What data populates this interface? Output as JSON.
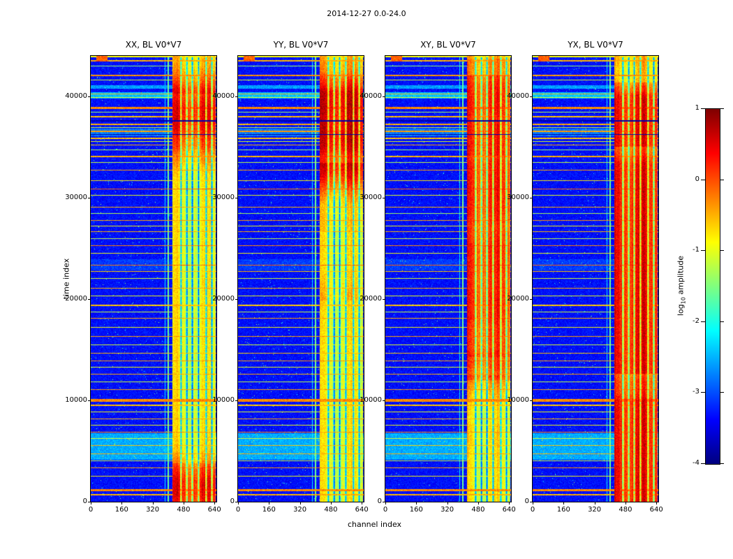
{
  "figure": {
    "title": "2014-12-27 0.0-24.0",
    "xlabel": "channel index",
    "ylabel": "time index"
  },
  "colorbar": {
    "label_prefix": "log",
    "label_sub": "10",
    "label_suffix": " amplitude",
    "ticks": [
      1,
      0,
      -1,
      -2,
      -3,
      -4
    ]
  },
  "chart_data": {
    "type": "heatmap",
    "title": "2014-12-27 0.0-24.0",
    "xlabel": "channel index",
    "ylabel": "time index",
    "colormap": "jet",
    "value_label": "log10 amplitude",
    "value_range": [
      -4,
      1
    ],
    "x_range": [
      0,
      650
    ],
    "y_range": [
      0,
      44000
    ],
    "x_ticks": [
      0,
      160,
      320,
      480,
      640
    ],
    "y_ticks": [
      0,
      10000,
      20000,
      30000,
      40000
    ],
    "colorbar_ticks": [
      1,
      0,
      -1,
      -2,
      -3,
      -4
    ],
    "grid": false,
    "legend": "none",
    "panels": [
      {
        "title": "XX, BL V0*V7",
        "polarization": "XX",
        "baseline": "V0*V7",
        "seed": 101,
        "hot_scale": 1.0
      },
      {
        "title": "YY, BL V0*V7",
        "polarization": "YY",
        "baseline": "V0*V7",
        "seed": 202,
        "hot_scale": 1.15
      },
      {
        "title": "XY, BL V0*V7",
        "polarization": "XY",
        "baseline": "V0*V7",
        "seed": 303,
        "hot_scale": 0.85
      },
      {
        "title": "YX, BL V0*V7",
        "polarization": "YX",
        "baseline": "V0*V7",
        "seed": 404,
        "hot_scale": 1.0
      }
    ],
    "features": {
      "background_level": -3.5,
      "active_band": {
        "channel_start": 420,
        "channel_end": 645,
        "typical_level": -1.0,
        "hot_level": -0.2,
        "notch_channels": [
          465,
          496,
          524,
          556,
          595,
          625
        ]
      },
      "extra_columns": [
        [
          0.615,
          0.004,
          -1.6
        ],
        [
          0.59,
          0.003,
          -2.2
        ]
      ],
      "rfi_rows": [
        [
          0.99,
          -0.5,
          2
        ],
        [
          0.978,
          -1.4,
          1
        ],
        [
          0.958,
          -0.35,
          2
        ],
        [
          0.947,
          -1.1,
          1
        ],
        [
          0.934,
          -2.6,
          5
        ],
        [
          0.915,
          -0.5,
          1
        ],
        [
          0.907,
          -1.0,
          1
        ],
        [
          0.886,
          -0.3,
          3
        ],
        [
          0.875,
          -1.3,
          1
        ],
        [
          0.865,
          -0.55,
          2
        ],
        [
          0.856,
          -3.8,
          2
        ],
        [
          0.848,
          -0.5,
          2
        ],
        [
          0.84,
          -1.2,
          1
        ],
        [
          0.832,
          -0.4,
          2
        ],
        [
          0.824,
          -3.8,
          1
        ],
        [
          0.816,
          -0.6,
          2
        ],
        [
          0.809,
          -1.0,
          1
        ],
        [
          0.801,
          -0.5,
          1
        ],
        [
          0.79,
          -1.3,
          1
        ],
        [
          0.776,
          -0.5,
          2
        ],
        [
          0.761,
          -1.2,
          1
        ],
        [
          0.744,
          -0.45,
          1
        ],
        [
          0.721,
          -0.8,
          1
        ],
        [
          0.701,
          -0.15,
          1
        ],
        [
          0.688,
          -1.0,
          1
        ],
        [
          0.661,
          -0.5,
          1
        ],
        [
          0.646,
          -1.3,
          1
        ],
        [
          0.631,
          -0.4,
          1
        ],
        [
          0.618,
          -0.9,
          1
        ],
        [
          0.606,
          -0.5,
          1
        ],
        [
          0.591,
          -1.2,
          1
        ],
        [
          0.574,
          -0.3,
          1
        ],
        [
          0.557,
          -0.9,
          1
        ],
        [
          0.531,
          -0.15,
          1
        ],
        [
          0.517,
          -0.6,
          1
        ],
        [
          0.501,
          -1.1,
          1
        ],
        [
          0.479,
          -0.5,
          1
        ],
        [
          0.461,
          -1.0,
          1
        ],
        [
          0.441,
          -0.6,
          2
        ],
        [
          0.426,
          -1.2,
          1
        ],
        [
          0.411,
          -0.5,
          1
        ],
        [
          0.391,
          -0.9,
          1
        ],
        [
          0.371,
          -0.4,
          1
        ],
        [
          0.352,
          -1.1,
          1
        ],
        [
          0.333,
          -0.6,
          1
        ],
        [
          0.316,
          -0.4,
          1
        ],
        [
          0.301,
          -1.0,
          1
        ],
        [
          0.286,
          -0.5,
          1
        ],
        [
          0.269,
          -1.2,
          1
        ],
        [
          0.251,
          -0.4,
          1
        ],
        [
          0.229,
          -0.3,
          4
        ],
        [
          0.216,
          -0.6,
          2
        ],
        [
          0.201,
          -1.0,
          1
        ],
        [
          0.186,
          -0.5,
          1
        ],
        [
          0.171,
          -0.9,
          1
        ],
        [
          0.156,
          -0.4,
          1
        ],
        [
          0.141,
          -1.1,
          1
        ],
        [
          0.126,
          -0.6,
          1
        ],
        [
          0.106,
          -0.5,
          1
        ],
        [
          0.091,
          -1.2,
          1
        ],
        [
          0.076,
          -0.4,
          1
        ],
        [
          0.056,
          -0.9,
          1
        ],
        [
          0.027,
          -0.3,
          3
        ],
        [
          0.016,
          -0.5,
          2
        ]
      ],
      "soft_bands": [
        [
          0.905,
          0.92,
          0.9
        ],
        [
          0.82,
          0.838,
          0.55
        ],
        [
          0.095,
          0.155,
          0.8
        ],
        [
          0.52,
          0.545,
          0.25
        ]
      ],
      "top_edge": {
        "rows": 2,
        "level": -0.9
      },
      "top_left_blob": {
        "rows": 8,
        "c0": 0.04,
        "c1": 0.13,
        "level": -0.1
      }
    }
  }
}
